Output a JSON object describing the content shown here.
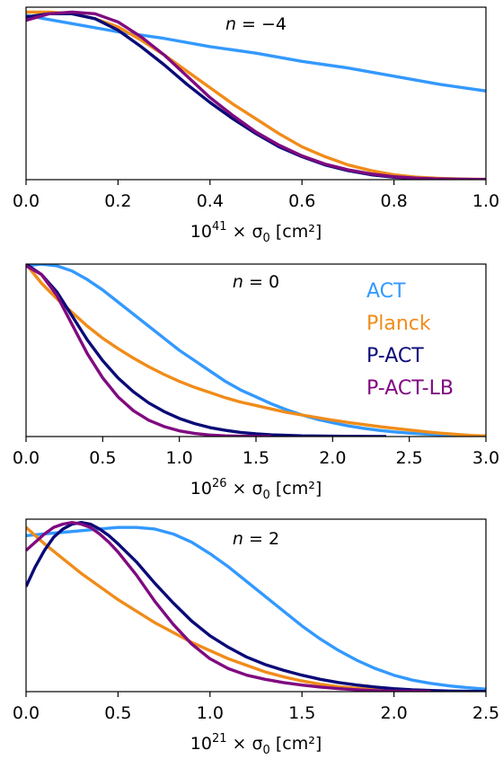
{
  "chart_data": [
    {
      "type": "line",
      "annotation": {
        "pre": "n",
        "post": " = −4"
      },
      "xlabel": {
        "pre": "10",
        "sup": "41",
        "post": " × σ",
        "sub": "0",
        "tail": " [cm²]"
      },
      "xlim": [
        0,
        1.0
      ],
      "ylim": [
        0,
        1.05
      ],
      "xticks": [
        "0.0",
        "0.2",
        "0.4",
        "0.6",
        "0.8",
        "1.0"
      ],
      "xtick_values": [
        0,
        0.2,
        0.4,
        0.6,
        0.8,
        1.0
      ],
      "series": [
        {
          "name": "ACT",
          "color": "#3399ff",
          "x": [
            0,
            0.1,
            0.2,
            0.3,
            0.4,
            0.5,
            0.6,
            0.7,
            0.8,
            0.9,
            1.0
          ],
          "y": [
            1.0,
            0.95,
            0.9,
            0.86,
            0.81,
            0.77,
            0.72,
            0.68,
            0.63,
            0.58,
            0.54
          ]
        },
        {
          "name": "Planck",
          "color": "#f08c1a",
          "x": [
            0,
            0.05,
            0.1,
            0.15,
            0.2,
            0.25,
            0.3,
            0.35,
            0.4,
            0.45,
            0.5,
            0.55,
            0.6,
            0.65,
            0.7,
            0.75,
            0.8,
            0.85,
            0.9,
            0.95,
            1.0
          ],
          "y": [
            1.02,
            1.02,
            1.01,
            0.98,
            0.93,
            0.85,
            0.76,
            0.66,
            0.56,
            0.46,
            0.37,
            0.28,
            0.2,
            0.14,
            0.09,
            0.055,
            0.03,
            0.015,
            0.008,
            0.004,
            0.002
          ]
        },
        {
          "name": "P-ACT",
          "color": "#0a0a78",
          "x": [
            0,
            0.05,
            0.1,
            0.15,
            0.2,
            0.25,
            0.3,
            0.35,
            0.4,
            0.45,
            0.5,
            0.55,
            0.6,
            0.65,
            0.7,
            0.75,
            0.8,
            0.85,
            0.9,
            0.95,
            1.0
          ],
          "y": [
            0.99,
            1.01,
            1.01,
            0.98,
            0.91,
            0.81,
            0.7,
            0.58,
            0.47,
            0.37,
            0.28,
            0.2,
            0.14,
            0.09,
            0.055,
            0.03,
            0.015,
            0.008,
            0.004,
            0.002,
            0.001
          ]
        },
        {
          "name": "P-ACT-LB",
          "color": "#800a80",
          "x": [
            0,
            0.05,
            0.1,
            0.15,
            0.2,
            0.25,
            0.3,
            0.35,
            0.4,
            0.45,
            0.5,
            0.55,
            0.6,
            0.65,
            0.7,
            0.75,
            0.8,
            0.85,
            0.9,
            0.95,
            1.0
          ],
          "y": [
            0.97,
            1.01,
            1.02,
            1.01,
            0.96,
            0.87,
            0.76,
            0.63,
            0.5,
            0.39,
            0.29,
            0.21,
            0.145,
            0.095,
            0.06,
            0.035,
            0.018,
            0.009,
            0.004,
            0.002,
            0.001
          ]
        }
      ]
    },
    {
      "type": "line",
      "annotation": {
        "pre": "n",
        "post": " = 0"
      },
      "xlabel": {
        "pre": "10",
        "sup": "26",
        "post": " × σ",
        "sub": "0",
        "tail": " [cm²]"
      },
      "xlim": [
        0,
        3.0
      ],
      "ylim": [
        0,
        1.0
      ],
      "xticks": [
        "0.0",
        "0.5",
        "1.0",
        "1.5",
        "2.0",
        "2.5",
        "3.0"
      ],
      "xtick_values": [
        0,
        0.5,
        1.0,
        1.5,
        2.0,
        2.5,
        3.0
      ],
      "legend": {
        "location": "upper right",
        "entries": [
          "ACT",
          "Planck",
          "P-ACT",
          "P-ACT-LB"
        ]
      },
      "series": [
        {
          "name": "ACT",
          "color": "#3399ff",
          "x": [
            0,
            0.1,
            0.2,
            0.3,
            0.4,
            0.5,
            0.6,
            0.7,
            0.8,
            0.9,
            1.0,
            1.1,
            1.2,
            1.3,
            1.4,
            1.5,
            1.6,
            1.7,
            1.8,
            1.9,
            2.0,
            2.1,
            2.2,
            2.3,
            2.4,
            2.5,
            2.6,
            2.7,
            2.8,
            2.9,
            3.0
          ],
          "y": [
            0.99,
            1.0,
            0.99,
            0.96,
            0.91,
            0.85,
            0.78,
            0.71,
            0.64,
            0.57,
            0.5,
            0.44,
            0.38,
            0.32,
            0.27,
            0.23,
            0.19,
            0.155,
            0.125,
            0.1,
            0.08,
            0.062,
            0.048,
            0.036,
            0.027,
            0.02,
            0.015,
            0.011,
            0.008,
            0.005,
            0.004
          ]
        },
        {
          "name": "Planck",
          "color": "#f08c1a",
          "x": [
            0,
            0.1,
            0.2,
            0.3,
            0.4,
            0.5,
            0.6,
            0.7,
            0.8,
            0.9,
            1.0,
            1.1,
            1.2,
            1.3,
            1.4,
            1.5,
            1.6,
            1.7,
            1.8,
            1.9,
            2.0,
            2.1,
            2.2,
            2.3,
            2.4,
            2.5,
            2.6,
            2.7,
            2.8,
            2.9,
            3.0
          ],
          "y": [
            1.0,
            0.89,
            0.8,
            0.72,
            0.64,
            0.57,
            0.51,
            0.455,
            0.405,
            0.36,
            0.32,
            0.285,
            0.255,
            0.225,
            0.2,
            0.18,
            0.16,
            0.14,
            0.125,
            0.11,
            0.095,
            0.082,
            0.07,
            0.058,
            0.048,
            0.038,
            0.028,
            0.02,
            0.013,
            0.007,
            0.003
          ]
        },
        {
          "name": "P-ACT",
          "color": "#0a0a78",
          "x": [
            0,
            0.1,
            0.2,
            0.3,
            0.4,
            0.5,
            0.6,
            0.7,
            0.8,
            0.9,
            1.0,
            1.1,
            1.2,
            1.3,
            1.4,
            1.5,
            1.6,
            1.8,
            2.0,
            2.2,
            2.35
          ],
          "y": [
            1.0,
            0.94,
            0.84,
            0.7,
            0.56,
            0.44,
            0.34,
            0.26,
            0.195,
            0.145,
            0.105,
            0.075,
            0.052,
            0.036,
            0.024,
            0.016,
            0.01,
            0.004,
            0.002,
            0.001,
            0.0
          ]
        },
        {
          "name": "P-ACT-LB",
          "color": "#800a80",
          "x": [
            0,
            0.1,
            0.2,
            0.3,
            0.4,
            0.5,
            0.6,
            0.7,
            0.8,
            0.9,
            1.0,
            1.1,
            1.2,
            1.3,
            1.4,
            1.5,
            1.6
          ],
          "y": [
            0.99,
            0.94,
            0.82,
            0.65,
            0.48,
            0.34,
            0.23,
            0.15,
            0.095,
            0.058,
            0.033,
            0.018,
            0.009,
            0.004,
            0.002,
            0.001,
            0.0
          ]
        }
      ]
    },
    {
      "type": "line",
      "annotation": {
        "pre": "n",
        "post": " = 2"
      },
      "xlabel": {
        "pre": "10",
        "sup": "21",
        "post": " × σ",
        "sub": "0",
        "tail": " [cm²]"
      },
      "xlim": [
        0,
        2.5
      ],
      "ylim": [
        0,
        1.05
      ],
      "xticks": [
        "0.0",
        "0.5",
        "1.0",
        "1.5",
        "2.0",
        "2.5"
      ],
      "xtick_values": [
        0,
        0.5,
        1.0,
        1.5,
        2.0,
        2.5
      ],
      "series": [
        {
          "name": "ACT",
          "color": "#3399ff",
          "x": [
            0,
            0.1,
            0.2,
            0.3,
            0.4,
            0.5,
            0.6,
            0.7,
            0.8,
            0.9,
            1.0,
            1.1,
            1.2,
            1.3,
            1.4,
            1.5,
            1.6,
            1.7,
            1.8,
            1.9,
            2.0,
            2.1,
            2.2,
            2.3,
            2.4,
            2.5
          ],
          "y": [
            0.95,
            0.96,
            0.97,
            0.98,
            0.99,
            1.0,
            1.0,
            0.99,
            0.96,
            0.91,
            0.84,
            0.76,
            0.67,
            0.58,
            0.49,
            0.4,
            0.32,
            0.25,
            0.19,
            0.14,
            0.1,
            0.07,
            0.05,
            0.035,
            0.024,
            0.015
          ]
        },
        {
          "name": "Planck",
          "color": "#f08c1a",
          "x": [
            0,
            0.1,
            0.2,
            0.3,
            0.4,
            0.5,
            0.6,
            0.7,
            0.8,
            0.9,
            1.0,
            1.1,
            1.2,
            1.3,
            1.4,
            1.5,
            1.6,
            1.7,
            1.8,
            1.9,
            2.0,
            2.1,
            2.2
          ],
          "y": [
            1.0,
            0.9,
            0.81,
            0.72,
            0.64,
            0.56,
            0.49,
            0.42,
            0.36,
            0.3,
            0.25,
            0.2,
            0.16,
            0.12,
            0.09,
            0.065,
            0.045,
            0.03,
            0.02,
            0.012,
            0.007,
            0.004,
            0.002
          ]
        },
        {
          "name": "P-ACT",
          "color": "#0a0a78",
          "x": [
            0,
            0.05,
            0.1,
            0.15,
            0.2,
            0.25,
            0.3,
            0.35,
            0.4,
            0.45,
            0.5,
            0.6,
            0.7,
            0.8,
            0.9,
            1.0,
            1.1,
            1.2,
            1.3,
            1.4,
            1.5,
            1.6,
            1.7,
            1.8,
            1.9,
            2.0,
            2.1,
            2.2,
            2.3,
            2.4,
            2.5
          ],
          "y": [
            0.64,
            0.76,
            0.86,
            0.94,
            0.99,
            1.02,
            1.03,
            1.02,
            0.99,
            0.95,
            0.9,
            0.79,
            0.66,
            0.54,
            0.43,
            0.34,
            0.27,
            0.21,
            0.165,
            0.13,
            0.1,
            0.075,
            0.055,
            0.04,
            0.028,
            0.018,
            0.011,
            0.007,
            0.004,
            0.002,
            0.001
          ]
        },
        {
          "name": "P-ACT-LB",
          "color": "#800a80",
          "x": [
            0,
            0.05,
            0.1,
            0.15,
            0.2,
            0.25,
            0.3,
            0.35,
            0.4,
            0.45,
            0.5,
            0.6,
            0.7,
            0.8,
            0.9,
            1.0,
            1.1,
            1.2,
            1.3,
            1.4,
            1.5,
            1.6,
            1.7,
            1.8,
            1.9,
            2.0,
            2.1,
            2.2
          ],
          "y": [
            0.86,
            0.91,
            0.96,
            1.0,
            1.02,
            1.03,
            1.02,
            1.0,
            0.96,
            0.91,
            0.85,
            0.71,
            0.55,
            0.41,
            0.29,
            0.2,
            0.14,
            0.1,
            0.075,
            0.055,
            0.04,
            0.028,
            0.018,
            0.011,
            0.006,
            0.003,
            0.002,
            0.001
          ]
        }
      ]
    }
  ]
}
